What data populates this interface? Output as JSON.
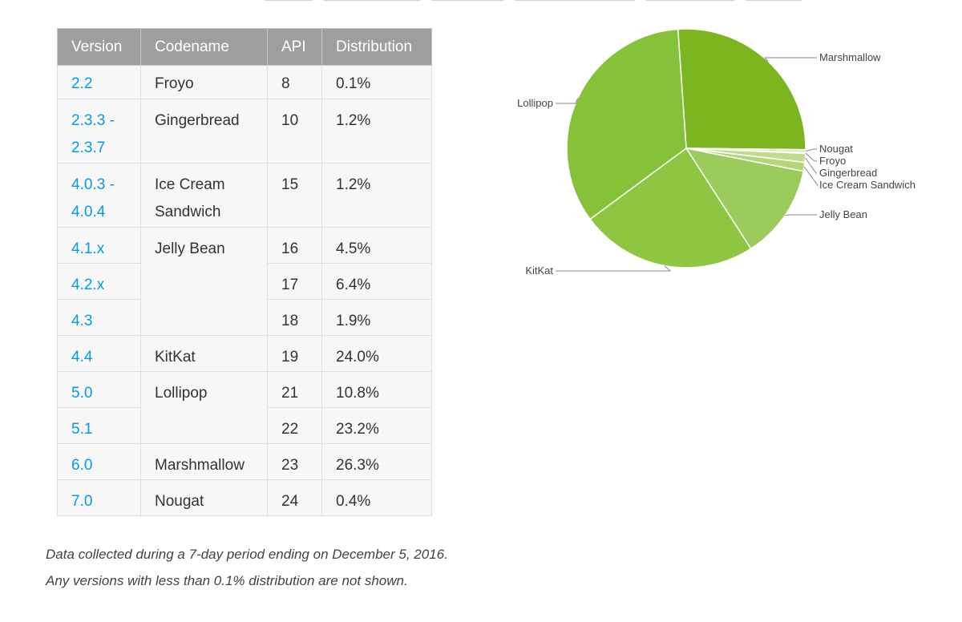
{
  "table": {
    "headers": [
      "Version",
      "Codename",
      "API",
      "Distribution"
    ],
    "rows": [
      {
        "version": "2.2",
        "codename": "Froyo",
        "api": "8",
        "dist": "0.1%"
      },
      {
        "version_lines": [
          "2.3.3 -",
          "2.3.7"
        ],
        "codename": "Gingerbread",
        "api": "10",
        "dist": "1.2%"
      },
      {
        "version_lines": [
          "4.0.3 -",
          "4.0.4"
        ],
        "codename_lines": [
          "Ice Cream",
          "Sandwich"
        ],
        "api": "15",
        "dist": "1.2%"
      },
      {
        "version": "4.1.x",
        "codename": "Jelly Bean",
        "api": "16",
        "dist": "4.5%"
      },
      {
        "version": "4.2.x",
        "api": "17",
        "dist": "6.4%"
      },
      {
        "version": "4.3",
        "api": "18",
        "dist": "1.9%"
      },
      {
        "version": "4.4",
        "codename": "KitKat",
        "api": "19",
        "dist": "24.0%"
      },
      {
        "version": "5.0",
        "codename": "Lollipop",
        "api": "21",
        "dist": "10.8%"
      },
      {
        "version": "5.1",
        "api": "22",
        "dist": "23.2%"
      },
      {
        "version": "6.0",
        "codename": "Marshmallow",
        "api": "23",
        "dist": "26.3%"
      },
      {
        "version": "7.0",
        "codename": "Nougat",
        "api": "24",
        "dist": "0.4%"
      }
    ]
  },
  "notes": {
    "line1": "Data collected during a 7-day period ending on December 5, 2016.",
    "line2": "Any versions with less than 0.1% distribution are not shown."
  },
  "chart_data": {
    "type": "pie",
    "slices": [
      {
        "label": "Marshmallow",
        "value": 26.3,
        "color": "#7cb520"
      },
      {
        "label": "Nougat",
        "value": 0.4,
        "color": "#d4e8b3"
      },
      {
        "label": "Froyo",
        "value": 0.1,
        "color": "#cde4a6"
      },
      {
        "label": "Gingerbread",
        "value": 1.2,
        "color": "#bfdc8d"
      },
      {
        "label": "Ice Cream Sandwich",
        "value": 1.2,
        "color": "#b3d67a"
      },
      {
        "label": "Jelly Bean",
        "value": 12.8,
        "color": "#9bcb5a"
      },
      {
        "label": "KitKat",
        "value": 24.0,
        "color": "#8fc641"
      },
      {
        "label": "Lollipop",
        "value": 34.0,
        "color": "#86c13a"
      }
    ]
  },
  "colors": {
    "header_bg": "#9e9e9e",
    "link_blue": "#039be5"
  }
}
